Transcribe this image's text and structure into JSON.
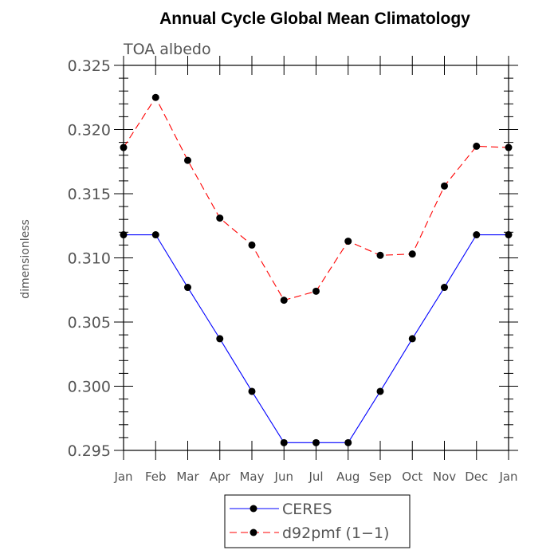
{
  "chart_data": {
    "type": "line",
    "title": "Annual Cycle Global Mean Climatology",
    "subtitle": "TOA albedo",
    "xlabel": "",
    "ylabel": "dimensionless",
    "categories": [
      "Jan",
      "Feb",
      "Mar",
      "Apr",
      "May",
      "Jun",
      "Jul",
      "Aug",
      "Sep",
      "Oct",
      "Nov",
      "Dec",
      "Jan"
    ],
    "ylim": [
      0.295,
      0.325
    ],
    "yticks": [
      "0.295",
      "0.300",
      "0.305",
      "0.310",
      "0.315",
      "0.320",
      "0.325"
    ],
    "series": [
      {
        "name": "CERES",
        "color": "#0000ff",
        "style": "solid",
        "values": [
          0.3118,
          0.3118,
          0.3077,
          0.3037,
          0.2996,
          0.2956,
          0.2956,
          0.2956,
          0.2996,
          0.3037,
          0.3077,
          0.3118,
          0.3118
        ]
      },
      {
        "name": "d92pmf (1−1)",
        "color": "#ff0000",
        "style": "dashed",
        "values": [
          0.3186,
          0.3225,
          0.3176,
          0.3131,
          0.311,
          0.3067,
          0.3074,
          0.3113,
          0.3102,
          0.3103,
          0.3156,
          0.3187,
          0.3186
        ]
      }
    ],
    "legend_position": "bottom-center"
  }
}
